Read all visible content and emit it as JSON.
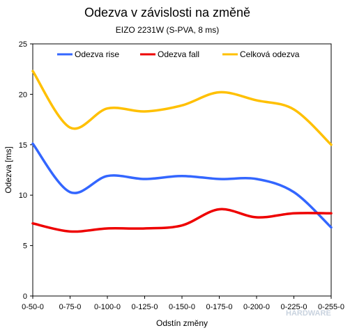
{
  "chart_data": {
    "type": "line",
    "title": "Odezva v závislosti na změně",
    "subtitle": "EIZO 2231W  (S-PVA, 8 ms)",
    "xlabel": "Odstín změny",
    "ylabel": "Odezva [ms]",
    "categories": [
      "0-50-0",
      "0-75-0",
      "0-100-0",
      "0-125-0",
      "0-150-0",
      "0-175-0",
      "0-200-0",
      "0-225-0",
      "0-255-0"
    ],
    "ylim": [
      0,
      25
    ],
    "yticks": [
      0,
      5,
      10,
      15,
      20,
      25
    ],
    "grid": false,
    "legend_position": "top",
    "series": [
      {
        "name": "Odezva rise",
        "color": "#3366ff",
        "values": [
          15.1,
          10.3,
          11.9,
          11.6,
          11.9,
          11.6,
          11.6,
          10.3,
          6.8
        ]
      },
      {
        "name": "Odezva fall",
        "color": "#ee0000",
        "values": [
          7.2,
          6.4,
          6.7,
          6.7,
          7.0,
          8.6,
          7.8,
          8.2,
          8.2
        ]
      },
      {
        "name": "Celková odezva",
        "color": "#ffc000",
        "values": [
          22.3,
          16.7,
          18.6,
          18.3,
          18.9,
          20.2,
          19.4,
          18.5,
          15.0
        ]
      }
    ]
  },
  "watermark": "HARDWARE"
}
